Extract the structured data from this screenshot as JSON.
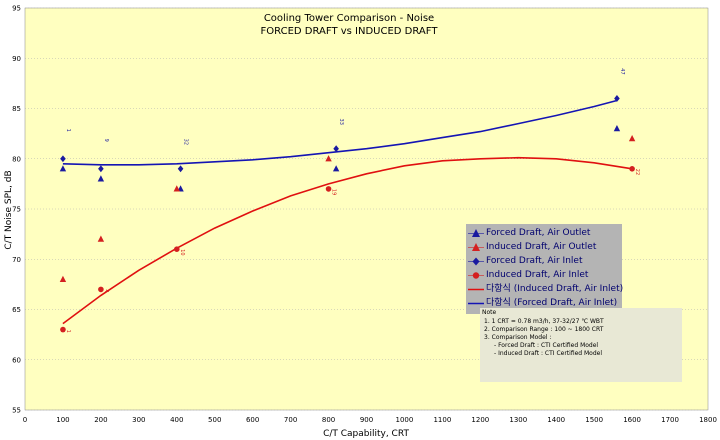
{
  "chart_data": {
    "type": "scatter",
    "title": "Cooling Tower Comparison - Noise",
    "subtitle": "FORCED DRAFT vs INDUCED DRAFT",
    "xlabel": "C/T Capability, CRT",
    "ylabel": "C/T Noise SPL, dB",
    "xlim": [
      0,
      1800
    ],
    "ylim": [
      55,
      95
    ],
    "xticks": [
      0,
      100,
      200,
      300,
      400,
      500,
      600,
      700,
      800,
      900,
      1000,
      1100,
      1200,
      1300,
      1400,
      1500,
      1600,
      1700,
      1800
    ],
    "yticks": [
      55,
      60,
      65,
      70,
      75,
      80,
      85,
      90,
      95
    ],
    "grid": true,
    "series": [
      {
        "name": "Forced Draft, Air Outlet",
        "marker": "triangle",
        "color": "#1a1aa0",
        "points": [
          [
            100,
            79
          ],
          [
            200,
            78
          ],
          [
            410,
            77
          ],
          [
            820,
            79
          ],
          [
            1560,
            83
          ]
        ]
      },
      {
        "name": "Induced Draft, Air Outlet",
        "marker": "triangle",
        "color": "#d42020",
        "points": [
          [
            100,
            68
          ],
          [
            200,
            72
          ],
          [
            400,
            77
          ],
          [
            800,
            80
          ],
          [
            1600,
            82
          ]
        ]
      },
      {
        "name": "Forced Draft, Air Inlet",
        "marker": "diamond",
        "color": "#1a1aa0",
        "points": [
          [
            100,
            80
          ],
          [
            200,
            79
          ],
          [
            410,
            79
          ],
          [
            820,
            81
          ],
          [
            1560,
            86
          ]
        ]
      },
      {
        "name": "Induced Draft, Air Inlet",
        "marker": "circle",
        "color": "#d42020",
        "points": [
          [
            100,
            63
          ],
          [
            200,
            67
          ],
          [
            400,
            71
          ],
          [
            800,
            77
          ],
          [
            1600,
            79
          ]
        ]
      },
      {
        "name": "다항식 (Induced Draft, Air Inlet)",
        "type": "trendline",
        "color": "#e01010",
        "points": [
          [
            100,
            63.6
          ],
          [
            200,
            66.4
          ],
          [
            300,
            68.9
          ],
          [
            400,
            71.1
          ],
          [
            500,
            73.1
          ],
          [
            600,
            74.8
          ],
          [
            700,
            76.3
          ],
          [
            800,
            77.5
          ],
          [
            900,
            78.5
          ],
          [
            1000,
            79.3
          ],
          [
            1100,
            79.8
          ],
          [
            1200,
            80.0
          ],
          [
            1300,
            80.1
          ],
          [
            1400,
            80.0
          ],
          [
            1500,
            79.6
          ],
          [
            1600,
            79.0
          ]
        ]
      },
      {
        "name": "다항식 (Forced Draft, Air Inlet)",
        "type": "trendline",
        "color": "#1414b4",
        "points": [
          [
            100,
            79.5
          ],
          [
            200,
            79.4
          ],
          [
            300,
            79.4
          ],
          [
            400,
            79.5
          ],
          [
            500,
            79.7
          ],
          [
            600,
            79.9
          ],
          [
            700,
            80.2
          ],
          [
            800,
            80.6
          ],
          [
            900,
            81.0
          ],
          [
            1000,
            81.5
          ],
          [
            1100,
            82.1
          ],
          [
            1200,
            82.7
          ],
          [
            1300,
            83.5
          ],
          [
            1400,
            84.3
          ],
          [
            1500,
            85.2
          ],
          [
            1560,
            85.8
          ]
        ]
      }
    ],
    "annotations": [
      {
        "text": "1",
        "x": 100,
        "y": 83,
        "color": "#1a1aa0"
      },
      {
        "text": "9",
        "x": 200,
        "y": 82,
        "color": "#1a1aa0"
      },
      {
        "text": "32",
        "x": 410,
        "y": 82,
        "color": "#1a1aa0"
      },
      {
        "text": "33",
        "x": 820,
        "y": 84,
        "color": "#1a1aa0"
      },
      {
        "text": "47",
        "x": 1560,
        "y": 89,
        "color": "#1a1aa0"
      },
      {
        "text": "1",
        "x": 100,
        "y": 63,
        "color": "#d42020"
      },
      {
        "text": "4",
        "x": 200,
        "y": 67,
        "color": "#d42020"
      },
      {
        "text": "10",
        "x": 400,
        "y": 71,
        "color": "#d42020"
      },
      {
        "text": "19",
        "x": 800,
        "y": 77,
        "color": "#d42020"
      },
      {
        "text": "22",
        "x": 1600,
        "y": 79,
        "color": "#d42020"
      }
    ],
    "legend_position": "right"
  },
  "legend": [
    {
      "label": "Forced Draft, Air Outlet",
      "marker": "triangle",
      "color": "#1a1aa0"
    },
    {
      "label": "Induced Draft, Air Outlet",
      "marker": "triangle",
      "color": "#d42020"
    },
    {
      "label": "Forced Draft, Air Inlet",
      "marker": "diamond",
      "color": "#1a1aa0"
    },
    {
      "label": "Induced Draft, Air Inlet",
      "marker": "circle",
      "color": "#d42020"
    },
    {
      "label": "다항식 (Induced Draft, Air Inlet)",
      "marker": "line",
      "color": "#e01010"
    },
    {
      "label": "다항식 (Forced Draft, Air Inlet)",
      "marker": "line",
      "color": "#1414b4"
    }
  ],
  "note": {
    "heading": "Note",
    "lines": [
      "1. 1 CRT = 0.78 m3/h, 37-32/27 ℃ WBT",
      "2. Comparison Range : 100 ~ 1800 CRT",
      "3. Comparison Model :",
      "- Forced Draft : CTI Certified Model",
      "- Induced Draft : CTI Certified Model"
    ]
  }
}
